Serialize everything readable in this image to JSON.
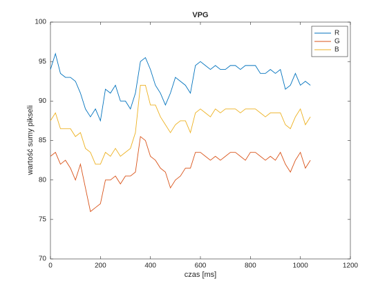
{
  "chart_data": {
    "type": "line",
    "title": "VPG",
    "xlabel": "czas [ms]",
    "ylabel": "wartość sumy pikseli",
    "x": [
      0,
      20,
      40,
      60,
      80,
      100,
      120,
      140,
      160,
      180,
      200,
      220,
      240,
      260,
      280,
      300,
      320,
      340,
      360,
      380,
      400,
      420,
      440,
      460,
      480,
      500,
      520,
      540,
      560,
      580,
      600,
      620,
      640,
      660,
      680,
      700,
      720,
      740,
      760,
      780,
      800,
      820,
      840,
      860,
      880,
      900,
      920,
      940,
      960,
      980,
      1000,
      1020,
      1040
    ],
    "series": [
      {
        "name": "R",
        "color": "#0072BD",
        "values": [
          94,
          96,
          93.5,
          93,
          93,
          92.5,
          91,
          89,
          88,
          89,
          87.5,
          91.5,
          91,
          92,
          90,
          90,
          89,
          91,
          95,
          95.5,
          94,
          92,
          91,
          89.5,
          91,
          93,
          92.5,
          92,
          91,
          94.5,
          95,
          94.5,
          94,
          94.5,
          94,
          94,
          94.5,
          94.5,
          94,
          94.5,
          94.5,
          94.5,
          93.5,
          93.5,
          94,
          93.5,
          94,
          91.5,
          92,
          93.5,
          92,
          92.5,
          92
        ]
      },
      {
        "name": "G",
        "color": "#D95319",
        "values": [
          83,
          83.5,
          82,
          82.5,
          81.5,
          80,
          82,
          79,
          76,
          76.5,
          77,
          80,
          80,
          80.5,
          79.5,
          80.5,
          80.5,
          81,
          85.5,
          85,
          83,
          82.5,
          81.5,
          81,
          79,
          80,
          80.5,
          81.5,
          81.5,
          83.5,
          83.5,
          83,
          82.5,
          83,
          82.5,
          83,
          83.5,
          83.5,
          83,
          82.5,
          83.5,
          83.5,
          83,
          82.5,
          83,
          82.5,
          83.5,
          82,
          81,
          82.5,
          83.5,
          81.5,
          82.5
        ]
      },
      {
        "name": "B",
        "color": "#EDB120",
        "values": [
          87.5,
          88.5,
          86.5,
          86.5,
          86.5,
          85.5,
          86,
          84,
          83.5,
          82,
          82,
          83.5,
          83,
          84,
          83,
          83.5,
          84,
          86,
          92,
          92,
          89.5,
          89.5,
          88,
          87,
          86,
          87,
          87.5,
          87.5,
          86,
          88.5,
          89,
          88.5,
          88,
          89,
          88.5,
          89,
          89,
          89,
          88.5,
          89,
          89,
          89,
          88.5,
          88,
          88.5,
          88.5,
          88.5,
          87,
          86.5,
          88,
          89,
          87,
          88
        ]
      }
    ],
    "xlim": [
      0,
      1200
    ],
    "xticks": [
      0,
      200,
      400,
      600,
      800,
      1000,
      1200
    ],
    "ylim": [
      70,
      100
    ],
    "yticks": [
      70,
      75,
      80,
      85,
      90,
      95,
      100
    ],
    "legend": "top-right"
  }
}
